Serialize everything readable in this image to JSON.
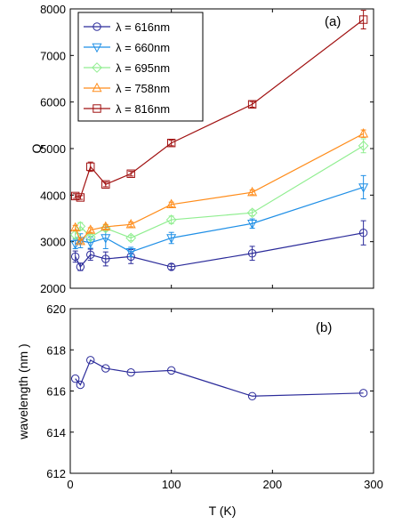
{
  "chart_data": [
    {
      "panel": "(a)",
      "type": "line",
      "error_bars": true,
      "xlabel": "",
      "ylabel": "Q",
      "xlim": [
        0,
        300
      ],
      "ylim": [
        2000,
        8000
      ],
      "xticks": [
        "0",
        "100",
        "200",
        "300"
      ],
      "xtick_labels_visible": false,
      "yticks": [
        "2000",
        "3000",
        "4000",
        "5000",
        "6000",
        "7000",
        "8000"
      ],
      "legend_position": "top-left",
      "series": [
        {
          "name": "λ = 616nm",
          "color": "#2b2b9a",
          "marker": "circle",
          "x": [
            5,
            10,
            20,
            35,
            60,
            100,
            180,
            290
          ],
          "y": [
            2680,
            2460,
            2720,
            2630,
            2680,
            2460,
            2750,
            3190
          ],
          "err": [
            120,
            80,
            120,
            150,
            150,
            60,
            150,
            260
          ]
        },
        {
          "name": "λ = 660nm",
          "color": "#1f8fe6",
          "marker": "triangle-down",
          "x": [
            5,
            10,
            20,
            35,
            60,
            100,
            180,
            290
          ],
          "y": [
            2950,
            3020,
            2980,
            3080,
            2780,
            3080,
            3390,
            4170
          ],
          "err": [
            100,
            150,
            120,
            230,
            100,
            120,
            100,
            250
          ]
        },
        {
          "name": "λ = 695nm",
          "color": "#90ee90",
          "marker": "diamond",
          "x": [
            5,
            10,
            20,
            35,
            60,
            100,
            180,
            290
          ],
          "y": [
            3150,
            3330,
            3100,
            3290,
            3080,
            3470,
            3620,
            5060
          ],
          "err": [
            80,
            80,
            60,
            60,
            60,
            80,
            60,
            150
          ]
        },
        {
          "name": "λ = 758nm",
          "color": "#ff8c1a",
          "marker": "triangle-up",
          "x": [
            5,
            10,
            20,
            35,
            60,
            100,
            180,
            290
          ],
          "y": [
            3300,
            3010,
            3250,
            3320,
            3370,
            3800,
            4060,
            5320
          ],
          "err": [
            50,
            40,
            50,
            50,
            50,
            50,
            50,
            80
          ]
        },
        {
          "name": "λ = 816nm",
          "color": "#a01010",
          "marker": "square",
          "x": [
            5,
            10,
            20,
            35,
            60,
            100,
            180,
            290
          ],
          "y": [
            3980,
            3950,
            4610,
            4230,
            4460,
            5120,
            5950,
            7770
          ],
          "err": [
            50,
            40,
            100,
            50,
            50,
            60,
            60,
            200
          ]
        }
      ]
    },
    {
      "panel": "(b)",
      "type": "line",
      "xlabel": "T (K)",
      "ylabel": "wavelength (nm )",
      "xlim": [
        0,
        300
      ],
      "ylim": [
        612,
        620
      ],
      "xticks": [
        "0",
        "100",
        "200",
        "300"
      ],
      "yticks": [
        "612",
        "614",
        "616",
        "618",
        "620"
      ],
      "series": [
        {
          "color": "#2b2b9a",
          "marker": "circle",
          "x": [
            5,
            10,
            20,
            35,
            60,
            100,
            180,
            290
          ],
          "y": [
            616.6,
            616.3,
            617.5,
            617.1,
            616.9,
            617.0,
            615.75,
            615.9
          ]
        }
      ]
    }
  ]
}
